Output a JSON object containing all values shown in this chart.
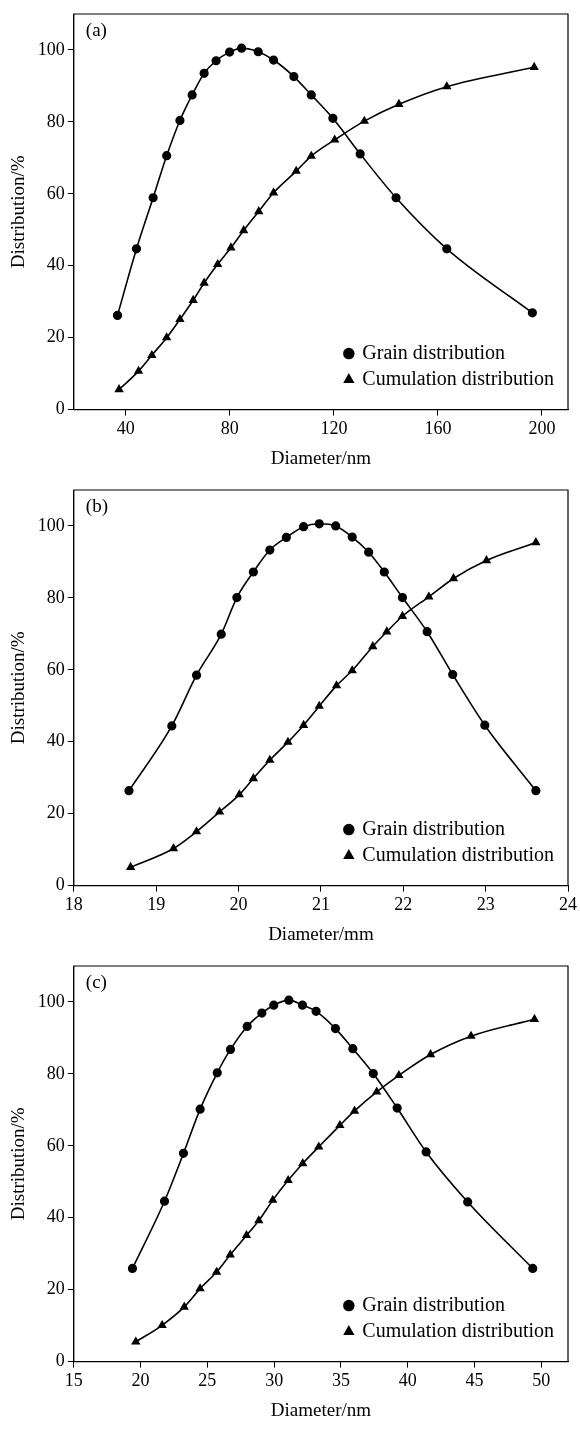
{
  "chart_data": [
    {
      "type": "line",
      "xlabel": "Diameter/nm",
      "ylabel": "Distribution/%",
      "annotations": [
        "(a)"
      ],
      "xlim": [
        20,
        210
      ],
      "xticks": [
        40,
        80,
        120,
        160,
        200
      ],
      "ylim": [
        0,
        110
      ],
      "yticks": [
        0,
        20,
        40,
        60,
        80,
        100
      ],
      "grid": false,
      "legend": "bottom right",
      "series": [
        {
          "name": "Grain distribution",
          "color": "#000000",
          "marker": "circle",
          "x": [
            36.8,
            44.1,
            50.5,
            55.7,
            60.8,
            65.5,
            70.1,
            74.7,
            79.9,
            84.5,
            90.9,
            96.8,
            104.6,
            111.3,
            119.6,
            130.1,
            143.9,
            163.4,
            196.3
          ],
          "values": [
            26.2,
            44.7,
            58.9,
            70.6,
            80.4,
            87.5,
            93.5,
            97.0,
            99.4,
            100.5,
            99.5,
            97.2,
            92.6,
            87.5,
            81.0,
            71.1,
            58.9,
            44.7,
            26.9
          ]
        },
        {
          "name": "Cumulation distribution",
          "color": "#000000",
          "marker": "triangle",
          "x": [
            37.4,
            44.9,
            50.0,
            55.7,
            60.8,
            65.9,
            70.1,
            75.3,
            80.4,
            85.3,
            91.1,
            96.8,
            105.5,
            111.3,
            120.3,
            131.7,
            145.0,
            163.4,
            197.0
          ],
          "values": [
            5.6,
            10.7,
            15.1,
            20.0,
            25.1,
            30.4,
            35.2,
            40.4,
            45.0,
            49.8,
            55.1,
            60.3,
            66.3,
            70.5,
            75.0,
            80.2,
            84.9,
            89.8,
            95.2
          ]
        }
      ]
    },
    {
      "type": "line",
      "xlabel": "Diameter/mm",
      "ylabel": "Distribution/%",
      "annotations": [
        "(b)"
      ],
      "xlim": [
        18,
        24
      ],
      "xticks": [
        18,
        19,
        20,
        21,
        22,
        23,
        24
      ],
      "ylim": [
        0,
        110
      ],
      "yticks": [
        0,
        20,
        40,
        60,
        80,
        100
      ],
      "grid": false,
      "legend": "bottom right",
      "series": [
        {
          "name": "Grain distribution",
          "color": "#000000",
          "marker": "circle",
          "x": [
            18.67,
            19.19,
            19.49,
            19.79,
            19.98,
            20.18,
            20.38,
            20.58,
            20.79,
            20.98,
            21.18,
            21.38,
            21.58,
            21.77,
            21.99,
            22.29,
            22.6,
            22.99,
            23.61
          ],
          "values": [
            26.4,
            44.4,
            58.5,
            69.9,
            80.1,
            87.2,
            93.3,
            96.8,
            99.8,
            100.6,
            100.0,
            96.9,
            92.7,
            87.2,
            80.1,
            70.6,
            58.7,
            44.6,
            26.4
          ]
        },
        {
          "name": "Cumulation distribution",
          "color": "#000000",
          "marker": "triangle",
          "x": [
            18.69,
            19.21,
            19.49,
            19.77,
            20.01,
            20.18,
            20.38,
            20.6,
            20.79,
            20.98,
            21.19,
            21.38,
            21.63,
            21.8,
            21.99,
            22.31,
            22.61,
            23.01,
            23.61
          ],
          "values": [
            5.1,
            10.3,
            15.0,
            20.5,
            25.3,
            29.8,
            34.9,
            39.9,
            44.6,
            49.9,
            55.6,
            59.8,
            66.5,
            70.6,
            74.9,
            80.3,
            85.4,
            90.4,
            95.4
          ]
        }
      ]
    },
    {
      "type": "line",
      "xlabel": "Diameter/nm",
      "ylabel": "Distribution/%",
      "annotations": [
        "(c)"
      ],
      "xlim": [
        15,
        52
      ],
      "xticks": [
        15,
        20,
        25,
        30,
        35,
        40,
        45,
        50
      ],
      "ylim": [
        0,
        110
      ],
      "yticks": [
        0,
        20,
        40,
        60,
        80,
        100
      ],
      "grid": false,
      "legend": "bottom right",
      "series": [
        {
          "name": "Grain distribution",
          "color": "#000000",
          "marker": "circle",
          "x": [
            19.39,
            21.79,
            23.21,
            24.46,
            25.74,
            26.73,
            27.98,
            29.08,
            29.97,
            31.1,
            32.12,
            33.14,
            34.59,
            35.89,
            37.42,
            39.21,
            41.38,
            44.49,
            49.36
          ],
          "values": [
            25.9,
            44.6,
            57.9,
            70.2,
            80.3,
            86.8,
            93.2,
            96.9,
            99.1,
            100.5,
            99.1,
            97.4,
            92.6,
            87.0,
            80.1,
            70.5,
            58.3,
            44.4,
            25.9
          ]
        },
        {
          "name": "Cumulation distribution",
          "color": "#000000",
          "marker": "triangle",
          "x": [
            19.64,
            21.61,
            23.27,
            24.46,
            25.69,
            26.71,
            27.93,
            28.85,
            29.9,
            31.05,
            32.14,
            33.34,
            34.92,
            36.02,
            37.68,
            39.34,
            41.71,
            44.74,
            49.49
          ],
          "values": [
            5.5,
            10.1,
            15.2,
            20.3,
            24.9,
            29.7,
            35.1,
            39.2,
            44.9,
            50.4,
            55.1,
            59.7,
            65.7,
            69.7,
            75.0,
            79.6,
            85.4,
            90.5,
            95.2
          ]
        }
      ]
    }
  ]
}
